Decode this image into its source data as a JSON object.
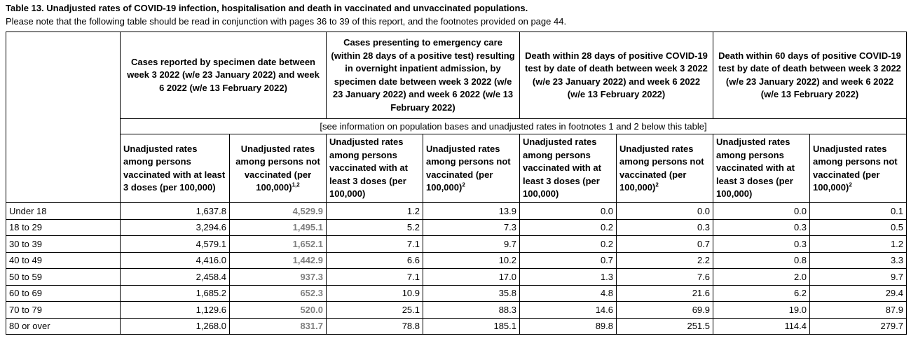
{
  "title": "Table 13. Unadjusted rates of COVID-19 infection, hospitalisation and death in vaccinated and unvaccinated populations.",
  "note": "Please note that the following table should be read in conjunction with pages 36 to 39 of this report, and the footnotes provided on page 44.",
  "groups": [
    "Cases reported by specimen date between week 3 2022 (w/e 23 January 2022) and week 6 2022 (w/e 13 February 2022)",
    "Cases presenting to emergency care (within 28 days of a positive test) resulting in overnight inpatient admission, by specimen date between week 3 2022 (w/e 23 January 2022) and week 6 2022 (w/e 13 February 2022)",
    "Death within 28 days of positive COVID-19 test by date of death between week 3 2022 (w/e 23 January 2022) and week 6 2022 (w/e 13 February 2022)",
    "Death within 60 days of positive COVID-19 test by date of death between week 3 2022 (w/e 23 January 2022) and week 6 2022 (w/e 13 February 2022)"
  ],
  "band": "[see information on population bases and unadjusted rates in footnotes 1 and 2 below this table]",
  "subheaders": {
    "vaccinated": "Unadjusted rates among persons vaccinated with at least 3 doses (per 100,000)",
    "unvaccinated": "Unadjusted rates among persons not vaccinated (per 100,000)",
    "sup_first": "1,2",
    "sup_other": "2"
  },
  "rows": [
    {
      "age": "Under 18",
      "v": [
        "1,637.8",
        "4,529.9",
        "1.2",
        "13.9",
        "0.0",
        "0.0",
        "0.0",
        "0.1"
      ]
    },
    {
      "age": "18 to 29",
      "v": [
        "3,294.6",
        "1,495.1",
        "5.2",
        "7.3",
        "0.2",
        "0.3",
        "0.3",
        "0.5"
      ]
    },
    {
      "age": "30 to 39",
      "v": [
        "4,579.1",
        "1,652.1",
        "7.1",
        "9.7",
        "0.2",
        "0.7",
        "0.3",
        "1.2"
      ]
    },
    {
      "age": "40 to 49",
      "v": [
        "4,416.0",
        "1,442.9",
        "6.6",
        "10.2",
        "0.7",
        "2.2",
        "0.8",
        "3.3"
      ]
    },
    {
      "age": "50 to 59",
      "v": [
        "2,458.4",
        "937.3",
        "7.1",
        "17.0",
        "1.3",
        "7.6",
        "2.0",
        "9.7"
      ]
    },
    {
      "age": "60 to 69",
      "v": [
        "1,685.2",
        "652.3",
        "10.9",
        "35.8",
        "4.8",
        "21.6",
        "6.2",
        "29.4"
      ]
    },
    {
      "age": "70 to 79",
      "v": [
        "1,129.6",
        "520.0",
        "25.1",
        "88.3",
        "14.6",
        "69.9",
        "19.0",
        "87.9"
      ]
    },
    {
      "age": "80 or over",
      "v": [
        "1,268.0",
        "831.7",
        "78.8",
        "185.1",
        "89.8",
        "251.5",
        "114.4",
        "279.7"
      ]
    }
  ]
}
